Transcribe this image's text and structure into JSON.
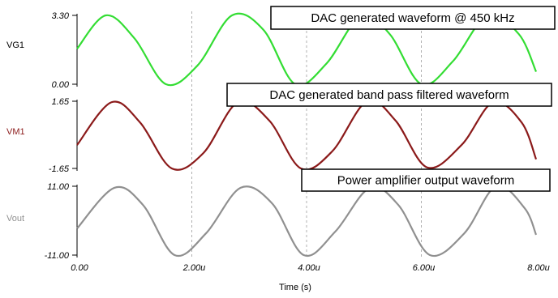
{
  "chart_data": {
    "type": "line",
    "xlabel": "Time (s)",
    "x_ticks": [
      "0.00",
      "2.00u",
      "4.00u",
      "6.00u",
      "8.00u"
    ],
    "xlim": [
      0,
      8
    ],
    "x_unit": "us",
    "grid": "vertical dashed at each x tick",
    "panels": [
      {
        "ylabel": "VG1",
        "color": "#33dd33",
        "ylim": [
          0,
          3.3
        ],
        "y_ticks": [
          "3.30",
          "0.00"
        ],
        "annotation": "DAC generated waveform @ 450 kHz",
        "x": [
          0,
          0.5,
          1.0,
          1.55,
          2.1,
          2.7,
          3.25,
          3.8,
          4.35,
          4.95,
          5.45,
          6.0,
          6.55,
          7.15,
          7.7,
          8.0
        ],
        "y": [
          1.7,
          3.3,
          2.2,
          0.0,
          0.9,
          3.3,
          2.6,
          0.0,
          1.0,
          3.3,
          2.4,
          0.0,
          1.1,
          3.3,
          2.4,
          0.6
        ]
      },
      {
        "ylabel": "VM1",
        "color": "#8b1a1a",
        "ylim": [
          -1.65,
          1.65
        ],
        "y_ticks": [
          "1.65",
          "-1.65"
        ],
        "annotation": "DAC generated band pass filtered waveform",
        "x": [
          0,
          0.6,
          1.1,
          1.65,
          2.2,
          2.8,
          3.35,
          3.9,
          4.45,
          5.05,
          5.55,
          6.1,
          6.7,
          7.25,
          7.75,
          8.0
        ],
        "y": [
          -0.5,
          1.6,
          0.6,
          -1.65,
          -0.9,
          1.6,
          0.7,
          -1.65,
          -0.8,
          1.65,
          0.7,
          -1.6,
          -0.5,
          1.6,
          0.6,
          -1.2
        ]
      },
      {
        "ylabel": "Vout",
        "color": "#909090",
        "ylim": [
          -11,
          11
        ],
        "y_ticks": [
          "11.00",
          "-11.00"
        ],
        "annotation": "Power amplifier output waveform",
        "x": [
          0,
          0.65,
          1.15,
          1.7,
          2.25,
          2.85,
          3.4,
          3.95,
          4.5,
          5.1,
          5.6,
          6.15,
          6.75,
          7.3,
          7.8,
          8.0
        ],
        "y": [
          -2.5,
          10.5,
          5.0,
          -11.0,
          -4.0,
          10.5,
          5.5,
          -11.0,
          -3.5,
          10.5,
          5.0,
          -11.0,
          -4.0,
          11.0,
          4.0,
          -4.5
        ]
      }
    ]
  }
}
